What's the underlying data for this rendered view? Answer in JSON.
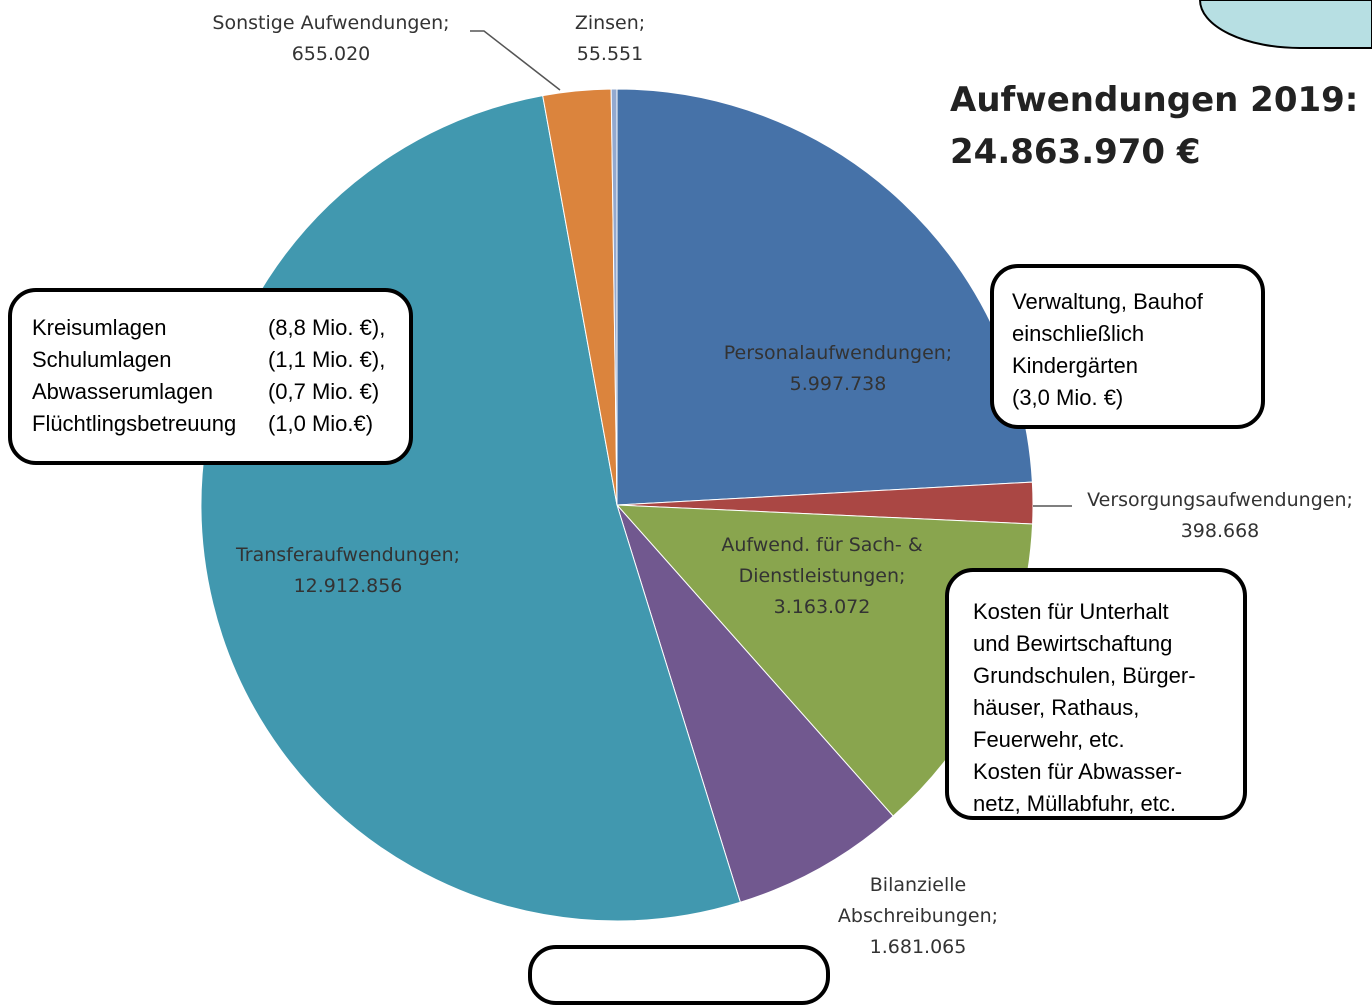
{
  "chart_data": {
    "type": "pie",
    "title": "Aufwendungen 2019:",
    "subtitle": "24.863.970 €",
    "categories": [
      "Personalaufwendungen;",
      "Versorgungsaufwendungen;",
      "Aufwend. für Sach- & Dienstleistungen;",
      "Bilanzielle Abschreibungen;",
      "Transferaufwendungen;",
      "Sonstige Aufwendungen;",
      "Zinsen;"
    ],
    "values": [
      5997738,
      398668,
      3163072,
      1681065,
      12912856,
      655020,
      55551
    ],
    "value_labels": [
      "5.997.738",
      "398.668",
      "3.163.072",
      "1.681.065",
      "12.912.856",
      "655.020",
      "55.551"
    ],
    "colors": [
      "#4672a8",
      "#aa4744",
      "#89a54e",
      "#71588f",
      "#4198af",
      "#db843d",
      "#93a9cf"
    ],
    "annotations": [
      {
        "rows": [
          [
            "Kreisumlagen",
            "(8,8 Mio. €),"
          ],
          [
            "Schulumlagen",
            "(1,1 Mio. €),"
          ],
          [
            "Abwasserumlagen",
            "(0,7 Mio. €)"
          ],
          [
            "Flüchtlingsbetreuung",
            "(1,0 Mio.€)"
          ]
        ]
      },
      {
        "lines": [
          "Verwaltung, Bauhof",
          "einschließlich",
          "Kindergärten",
          "(3,0 Mio. €)"
        ]
      },
      {
        "lines": [
          "Kosten für Unterhalt",
          "und Bewirtschaftung",
          "Grundschulen, Bürger-",
          "häuser, Rathaus,",
          "Feuerwehr, etc.",
          "Kosten für Abwasser-",
          "netz, Müllabfuhr, etc."
        ]
      }
    ]
  }
}
